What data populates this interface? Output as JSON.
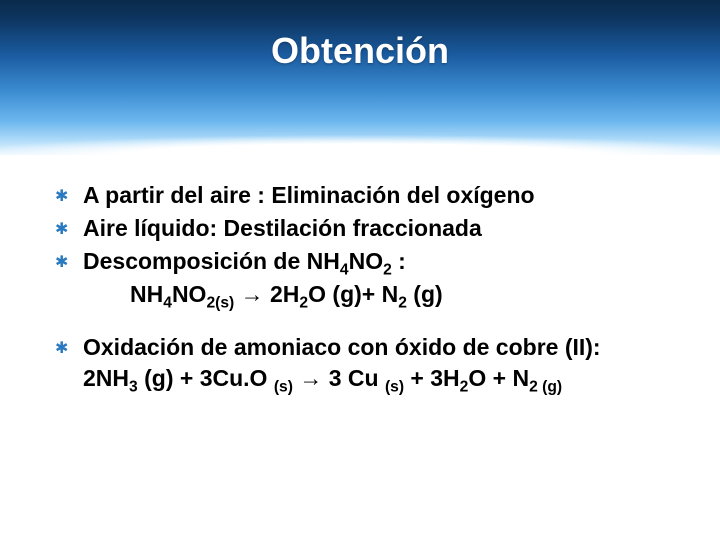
{
  "slide": {
    "title": "Obtención",
    "title_color": "#ffffff",
    "title_fontsize": 36,
    "banner_gradient": [
      "#0a2a4a",
      "#0d3560",
      "#1a5a9e",
      "#3a8ad0",
      "#6bb6ee",
      "#b8e0fa",
      "#e8f5ff"
    ],
    "background_color": "#ffffff",
    "bullet_color": "#2a7ac0",
    "text_color": "#000000",
    "body_fontsize": 23,
    "body_fontweight": "bold",
    "bullets": [
      {
        "text_html": "A partir del aire : Eliminación del oxígeno"
      },
      {
        "text_html": "Aire líquido: Destilación fraccionada"
      },
      {
        "text_html": "Descomposición de NH<sub>4</sub>NO<sub>2</sub> :",
        "sub_html": "NH<sub>4</sub>NO<span class=\"sub2\">2(s)</span> <span class=\"arrow\">→</span> 2H<sub>2</sub>O (g)+ N<sub>2</sub>  (g)"
      },
      {
        "gap": true
      },
      {
        "text_html": "Oxidación de amoniaco con óxido de cobre (II):<br>2NH<sub>3</sub> (g) + 3Cu.O <span class=\"sub2\">(s)</span> <span class=\"arrow\">→</span> 3 Cu <span class=\"sub2\">(s)</span> + 3H<sub>2</sub>O + N<span class=\"sub2\">2 (g)</span>"
      }
    ]
  }
}
